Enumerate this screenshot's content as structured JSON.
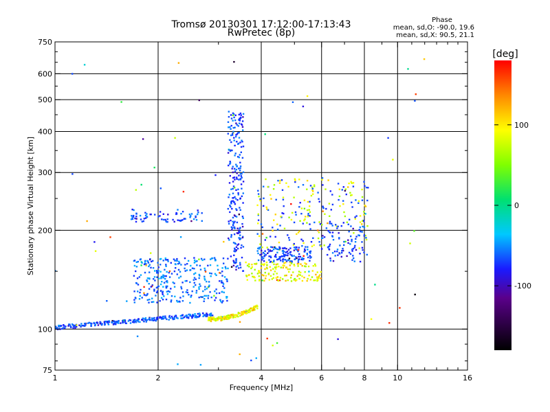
{
  "chart_data": {
    "type": "scatter",
    "title": "Tromsø 20130301 17:12:00-17:13:43",
    "subtitle": "RwPretec (8p)",
    "xlabel": "Frequency [MHz]",
    "ylabel": "Stationary phase Virtual Height [km]",
    "x_scale": "log",
    "y_scale": "log",
    "xlim": [
      1,
      16
    ],
    "ylim": [
      75,
      750
    ],
    "x_ticks": [
      1,
      2,
      4,
      6,
      8,
      10,
      16
    ],
    "y_ticks": [
      75,
      100,
      200,
      300,
      400,
      500,
      600,
      750
    ],
    "grid": true,
    "phase_box": {
      "heading": "Phase",
      "line1": "mean, sd,O: -90.0, 19.6",
      "line2": "mean, sd,X: 90.5, 21.1"
    },
    "colorbar": {
      "label": "[deg]",
      "range": [
        -180,
        180
      ],
      "ticks": [
        100,
        0,
        -100
      ]
    },
    "clusters": [
      {
        "name": "O-low-trace",
        "x_range": [
          1.0,
          2.9
        ],
        "y_range": [
          100,
          112
        ],
        "phase": -95
      },
      {
        "name": "yellow-low-trace",
        "x_range": [
          2.8,
          3.9
        ],
        "y_range": [
          107,
          117
        ],
        "phase": 100
      },
      {
        "name": "blue-mid-cloud",
        "x_range": [
          1.7,
          3.2
        ],
        "y_range": [
          120,
          165
        ],
        "phase": -80
      },
      {
        "name": "blue-upper-left",
        "x_range": [
          1.65,
          2.7
        ],
        "y_range": [
          212,
          232
        ],
        "phase": -95
      },
      {
        "name": "vertical-spike",
        "x_range": [
          3.2,
          3.55
        ],
        "y_range": [
          150,
          460
        ],
        "phase": -100
      },
      {
        "name": "blue-170-band",
        "x_range": [
          3.9,
          5.6
        ],
        "y_range": [
          160,
          178
        ],
        "phase": -95
      },
      {
        "name": "yellow-150-band",
        "x_range": [
          3.6,
          6.0
        ],
        "y_range": [
          140,
          160
        ],
        "phase": 95
      },
      {
        "name": "mixed-200-cloud",
        "x_range": [
          3.9,
          8.2
        ],
        "y_range": [
          175,
          290
        ],
        "phase": 40
      },
      {
        "name": "right-blue-tail",
        "x_range": [
          6.0,
          8.2
        ],
        "y_range": [
          160,
          210
        ],
        "phase": -100
      }
    ]
  }
}
